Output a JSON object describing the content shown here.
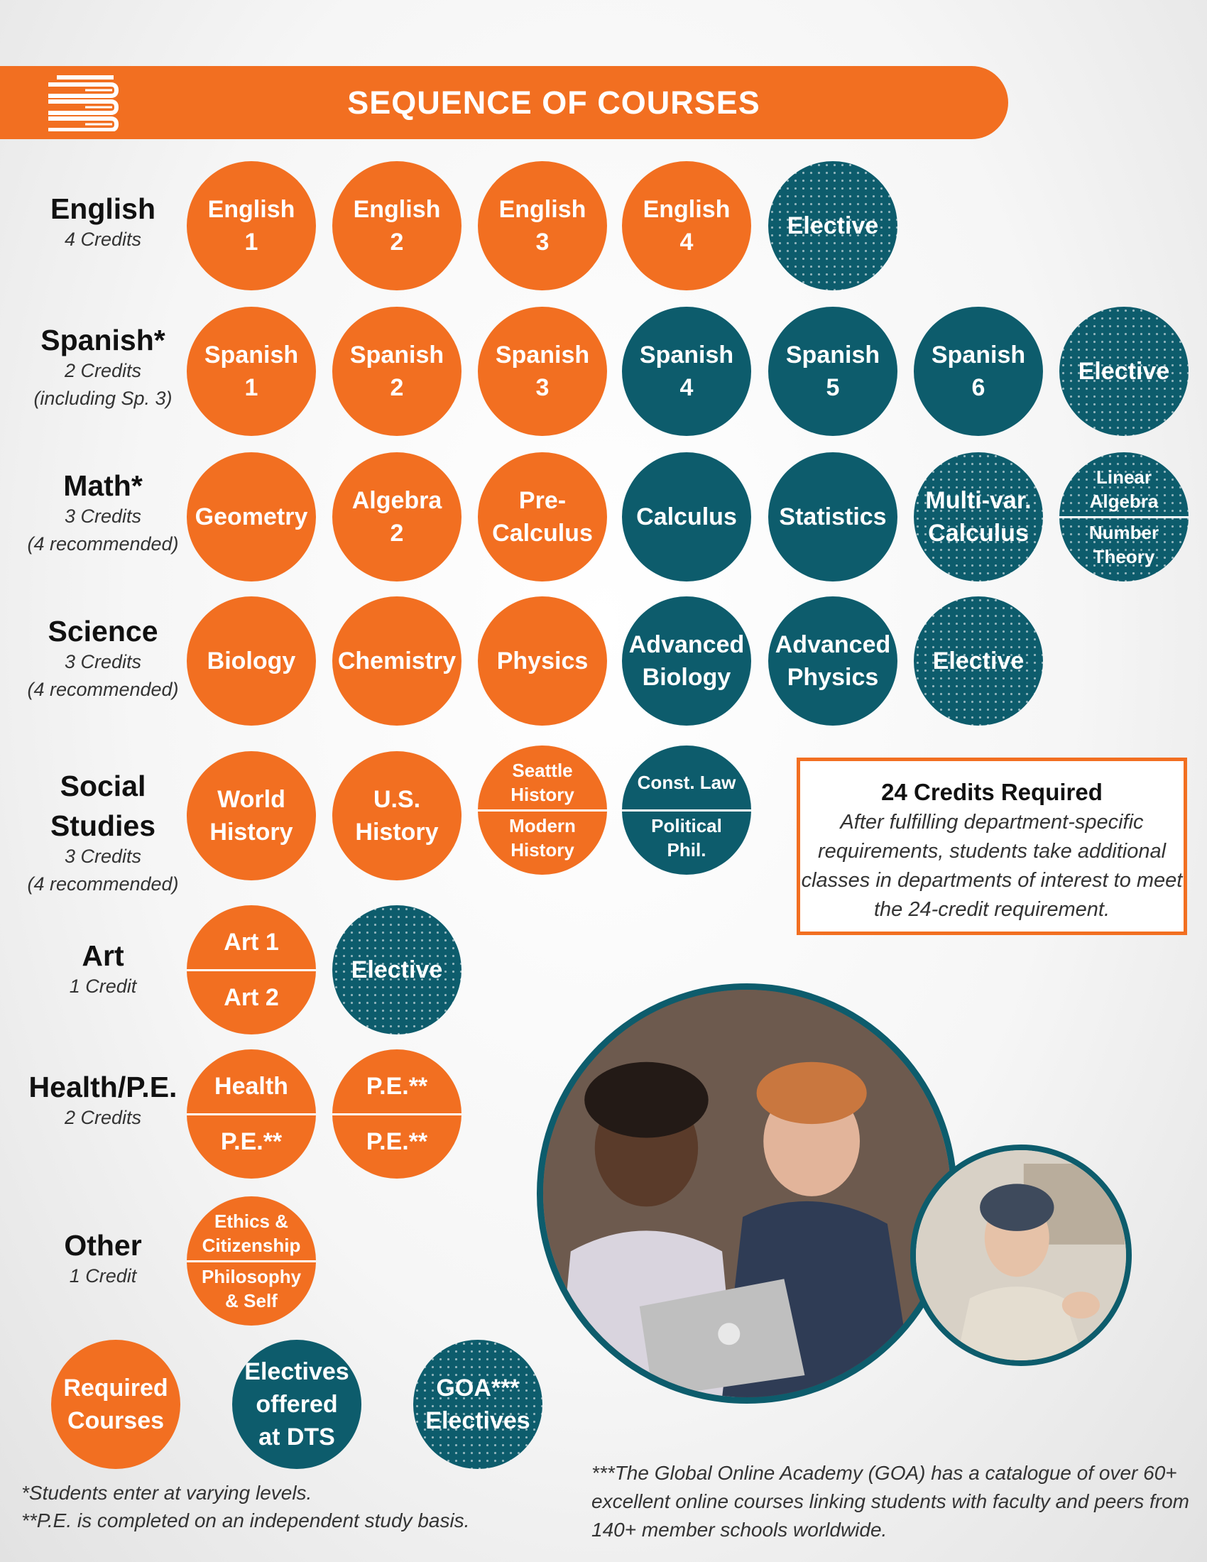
{
  "header": {
    "title": "SEQUENCE OF COURSES",
    "icon": "books-icon",
    "color": "#f26f21"
  },
  "colors": {
    "required": "#f26f21",
    "dts_elective": "#0d5c6c",
    "goa_elective": "#0d5c6c"
  },
  "subjects": {
    "english": {
      "name": "English",
      "credits": "4 Credits",
      "courses": [
        {
          "l1": "English",
          "l2": "1",
          "kind": "required"
        },
        {
          "l1": "English",
          "l2": "2",
          "kind": "required"
        },
        {
          "l1": "English",
          "l2": "3",
          "kind": "required"
        },
        {
          "l1": "English",
          "l2": "4",
          "kind": "required"
        },
        {
          "l1": "Elective",
          "kind": "goa"
        }
      ]
    },
    "spanish": {
      "name": "Spanish*",
      "credits": "2 Credits",
      "note": "(including Sp. 3)",
      "courses": [
        {
          "l1": "Spanish",
          "l2": "1",
          "kind": "required"
        },
        {
          "l1": "Spanish",
          "l2": "2",
          "kind": "required"
        },
        {
          "l1": "Spanish",
          "l2": "3",
          "kind": "required"
        },
        {
          "l1": "Spanish",
          "l2": "4",
          "kind": "dts"
        },
        {
          "l1": "Spanish",
          "l2": "5",
          "kind": "dts"
        },
        {
          "l1": "Spanish",
          "l2": "6",
          "kind": "dts"
        },
        {
          "l1": "Elective",
          "kind": "goa"
        }
      ]
    },
    "math": {
      "name": "Math*",
      "credits": "3 Credits",
      "note": "(4 recommended)",
      "courses": [
        {
          "l1": "Geometry",
          "kind": "required"
        },
        {
          "l1": "Algebra",
          "l2": "2",
          "kind": "required"
        },
        {
          "l1": "Pre-",
          "l2": "Calculus",
          "kind": "required"
        },
        {
          "l1": "Calculus",
          "kind": "dts"
        },
        {
          "l1": "Statistics",
          "kind": "dts"
        },
        {
          "l1": "Multi-var.",
          "l2": "Calculus",
          "kind": "goa"
        },
        {
          "top": "Linear Algebra",
          "bottom": "Number Theory",
          "kind": "goa"
        }
      ]
    },
    "science": {
      "name": "Science",
      "credits": "3 Credits",
      "note": "(4 recommended)",
      "courses": [
        {
          "l1": "Biology",
          "kind": "required"
        },
        {
          "l1": "Chemistry",
          "kind": "required"
        },
        {
          "l1": "Physics",
          "kind": "required"
        },
        {
          "l1": "Advanced",
          "l2": "Biology",
          "kind": "dts"
        },
        {
          "l1": "Advanced",
          "l2": "Physics",
          "kind": "dts"
        },
        {
          "l1": "Elective",
          "kind": "goa"
        }
      ]
    },
    "social": {
      "name1": "Social",
      "name2": "Studies",
      "credits": "3 Credits",
      "note": "(4 recommended)",
      "courses": [
        {
          "l1": "World",
          "l2": "History",
          "kind": "required"
        },
        {
          "l1": "U.S.",
          "l2": "History",
          "kind": "required"
        },
        {
          "top": "Seattle History",
          "bottom": "Modern History",
          "kind": "required"
        },
        {
          "top": "Const. Law",
          "bottom": "Political Phil.",
          "kind": "dts"
        }
      ]
    },
    "art": {
      "name": "Art",
      "credits": "1 Credit",
      "courses": [
        {
          "top": "Art 1",
          "bottom": "Art 2",
          "kind": "required"
        },
        {
          "l1": "Elective",
          "kind": "goa"
        }
      ]
    },
    "health": {
      "name": "Health/P.E.",
      "credits": "2 Credits",
      "courses": [
        {
          "top": "Health",
          "bottom": "P.E.**",
          "kind": "required"
        },
        {
          "top": "P.E.**",
          "bottom": "P.E.**",
          "kind": "required"
        }
      ]
    },
    "other": {
      "name": "Other",
      "credits": "1 Credit",
      "courses": [
        {
          "top": "Ethics & Citizenship",
          "bottom": "Philosophy & Self",
          "kind": "required"
        }
      ]
    }
  },
  "credits_box": {
    "title": "24 Credits Required",
    "body": "After fulfilling department-specific requirements, students take additional classes in departments of interest to meet the 24-credit requirement."
  },
  "legend": {
    "required": "Required Courses",
    "dts": "Electives offered at DTS",
    "goa": "GOA*** Electives"
  },
  "footnotes": {
    "f1": "*Students enter at varying levels.",
    "f2": "**P.E. is completed on an independent study basis.",
    "goa": "***The Global Online Academy (GOA) has a catalogue of over 60+ excellent online courses linking students with faculty and peers from 140+ member schools worldwide."
  }
}
